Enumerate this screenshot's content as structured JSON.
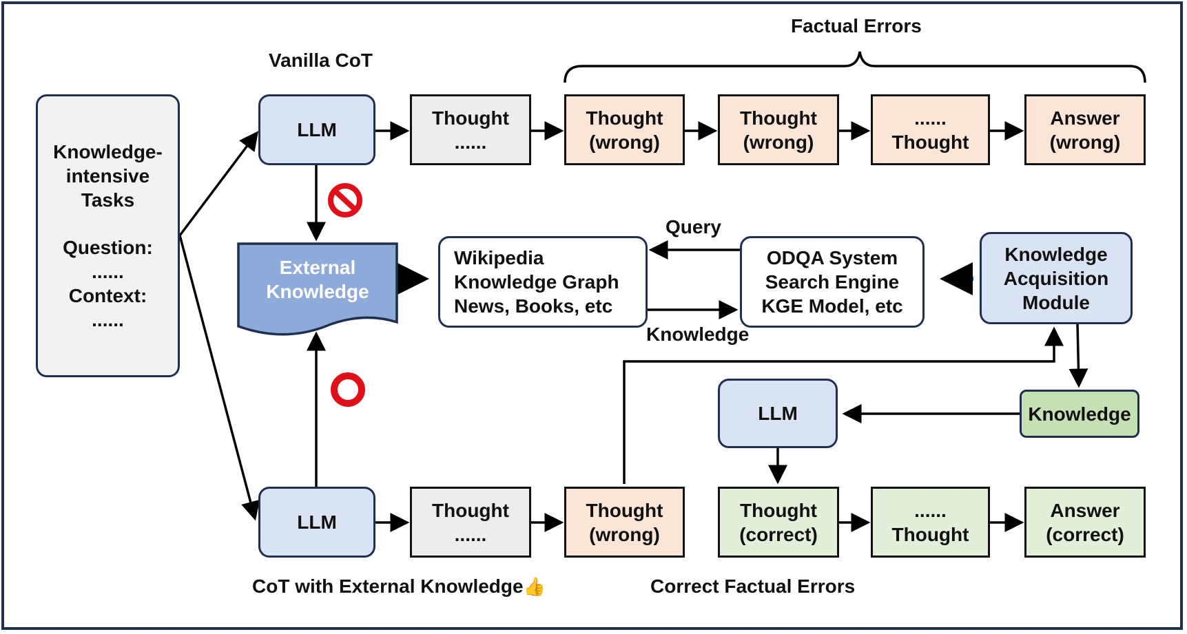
{
  "colors": {
    "border": "#1f2f4f",
    "llm_fill": "#dae3f3",
    "task_fill": "#f2f2f2",
    "thought_fill": "#ededed",
    "wrong_fill": "#fbe5d6",
    "correct_fill": "#e2f0d9",
    "knowledge_fill": "#c5e0b4",
    "external_fill": "#8eaadb",
    "blue_arrow": "#0070c0",
    "stop_red": "#e0101a"
  },
  "labels": {
    "factual_errors": "Factual Errors",
    "vanilla_cot": "Vanilla CoT",
    "query": "Query",
    "knowledge": "Knowledge",
    "cot_external": "CoT with External Knowledge",
    "thumbs_emoji": "👍",
    "correct_factual_errors": "Correct Factual Errors"
  },
  "task_box": {
    "line1": "Knowledge-",
    "line2": "intensive",
    "line3": "Tasks",
    "line4": "Question:",
    "line5": "......",
    "line6": "Context:",
    "line7": "......"
  },
  "top_row": {
    "llm": "LLM",
    "t1_line1": "Thought",
    "t1_line2": "......",
    "t2_line1": "Thought",
    "t2_line2": "(wrong)",
    "t3_line1": "Thought",
    "t3_line2": "(wrong)",
    "t4_line1": "......",
    "t4_line2": "Thought",
    "ans_line1": "Answer",
    "ans_line2": "(wrong)"
  },
  "middle_row": {
    "external_line1": "External",
    "external_line2": "Knowledge",
    "sources_line1": "Wikipedia",
    "sources_line2": "Knowledge Graph",
    "sources_line3": "News, Books, etc",
    "systems_line1": "ODQA System",
    "systems_line2": "Search Engine",
    "systems_line3": "KGE Model, etc",
    "kam_line1": "Knowledge",
    "kam_line2": "Acquisition",
    "kam_line3": "Module"
  },
  "correction": {
    "llm": "LLM",
    "knowledge": "Knowledge"
  },
  "bottom_row": {
    "llm": "LLM",
    "t1_line1": "Thought",
    "t1_line2": "......",
    "t2_line1": "Thought",
    "t2_line2": "(wrong)",
    "t3_line1": "Thought",
    "t3_line2": "(correct)",
    "t4_line1": "......",
    "t4_line2": "Thought",
    "ans_line1": "Answer",
    "ans_line2": "(correct)"
  }
}
